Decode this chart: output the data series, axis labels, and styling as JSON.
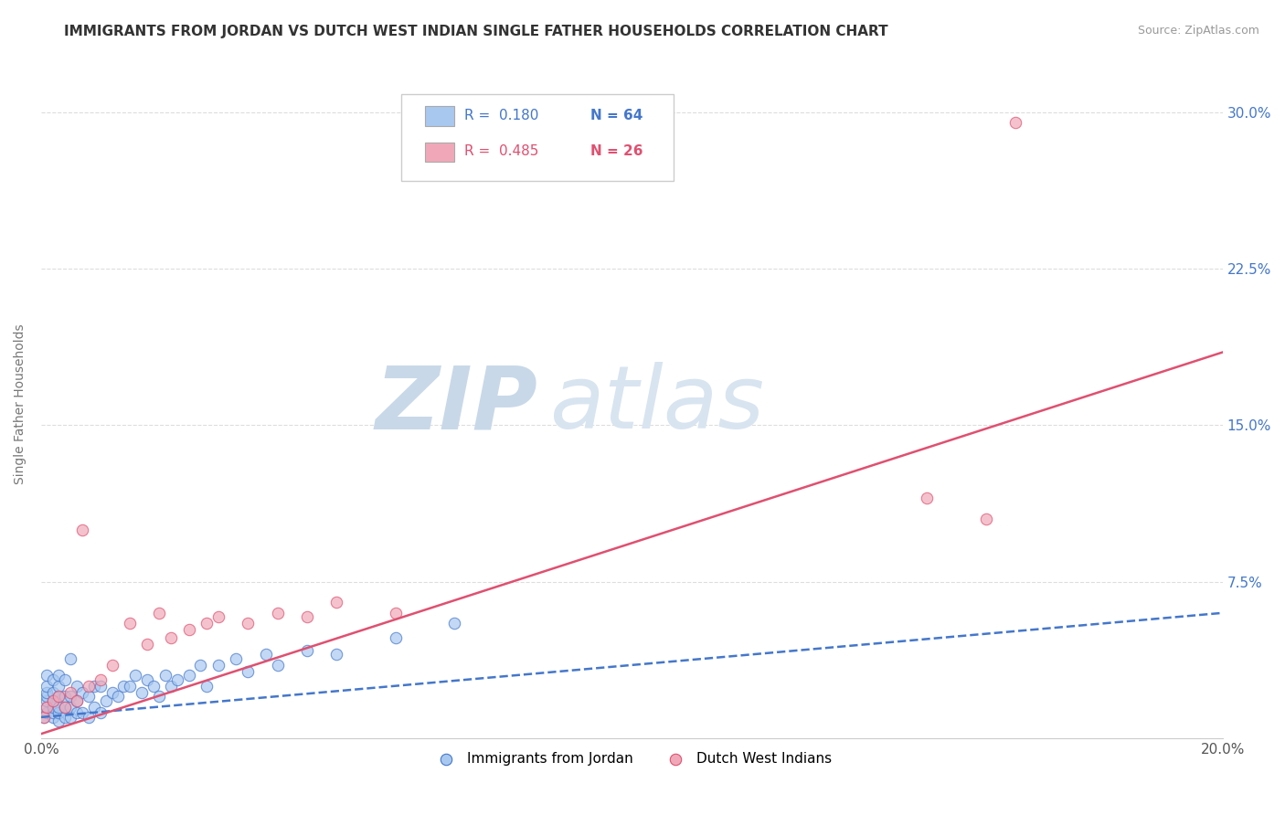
{
  "title": "IMMIGRANTS FROM JORDAN VS DUTCH WEST INDIAN SINGLE FATHER HOUSEHOLDS CORRELATION CHART",
  "source": "Source: ZipAtlas.com",
  "ylabel": "Single Father Households",
  "xlim": [
    0.0,
    0.2
  ],
  "ylim": [
    0.0,
    0.32
  ],
  "yticks": [
    0.075,
    0.15,
    0.225,
    0.3
  ],
  "ytick_labels": [
    "7.5%",
    "15.0%",
    "22.5%",
    "30.0%"
  ],
  "xticks": [
    0.0,
    0.2
  ],
  "xtick_labels": [
    "0.0%",
    "20.0%"
  ],
  "watermark_zip": "ZIP",
  "watermark_atlas": "atlas",
  "color_jordan": "#a8c8f0",
  "color_dutch": "#f0a8b8",
  "line_color_jordan": "#4477cc",
  "line_color_dutch": "#e05070",
  "jordan_points_x": [
    0.0005,
    0.001,
    0.001,
    0.001,
    0.001,
    0.001,
    0.001,
    0.001,
    0.002,
    0.002,
    0.002,
    0.002,
    0.002,
    0.002,
    0.003,
    0.003,
    0.003,
    0.003,
    0.003,
    0.003,
    0.004,
    0.004,
    0.004,
    0.004,
    0.005,
    0.005,
    0.005,
    0.005,
    0.006,
    0.006,
    0.006,
    0.007,
    0.007,
    0.008,
    0.008,
    0.009,
    0.009,
    0.01,
    0.01,
    0.011,
    0.012,
    0.013,
    0.014,
    0.015,
    0.016,
    0.017,
    0.018,
    0.019,
    0.02,
    0.021,
    0.022,
    0.023,
    0.025,
    0.027,
    0.028,
    0.03,
    0.033,
    0.035,
    0.038,
    0.04,
    0.045,
    0.05,
    0.06,
    0.07
  ],
  "jordan_points_y": [
    0.01,
    0.012,
    0.015,
    0.018,
    0.02,
    0.022,
    0.025,
    0.03,
    0.01,
    0.012,
    0.015,
    0.018,
    0.022,
    0.028,
    0.008,
    0.012,
    0.015,
    0.02,
    0.025,
    0.03,
    0.01,
    0.015,
    0.02,
    0.028,
    0.01,
    0.015,
    0.02,
    0.038,
    0.012,
    0.018,
    0.025,
    0.012,
    0.022,
    0.01,
    0.02,
    0.015,
    0.025,
    0.012,
    0.025,
    0.018,
    0.022,
    0.02,
    0.025,
    0.025,
    0.03,
    0.022,
    0.028,
    0.025,
    0.02,
    0.03,
    0.025,
    0.028,
    0.03,
    0.035,
    0.025,
    0.035,
    0.038,
    0.032,
    0.04,
    0.035,
    0.042,
    0.04,
    0.048,
    0.055
  ],
  "dutch_points_x": [
    0.0005,
    0.001,
    0.002,
    0.003,
    0.004,
    0.005,
    0.006,
    0.007,
    0.008,
    0.01,
    0.012,
    0.015,
    0.018,
    0.02,
    0.022,
    0.025,
    0.028,
    0.03,
    0.035,
    0.04,
    0.045,
    0.05,
    0.06,
    0.15,
    0.165,
    0.16
  ],
  "dutch_points_y": [
    0.01,
    0.015,
    0.018,
    0.02,
    0.015,
    0.022,
    0.018,
    0.1,
    0.025,
    0.028,
    0.035,
    0.055,
    0.045,
    0.06,
    0.048,
    0.052,
    0.055,
    0.058,
    0.055,
    0.06,
    0.058,
    0.065,
    0.06,
    0.115,
    0.295,
    0.105
  ],
  "jordan_trendline_x": [
    0.0,
    0.2
  ],
  "jordan_trendline_y": [
    0.01,
    0.06
  ],
  "dutch_trendline_x": [
    0.0,
    0.2
  ],
  "dutch_trendline_y": [
    0.002,
    0.185
  ],
  "background_color": "#ffffff",
  "grid_color": "#dddddd",
  "title_fontsize": 11,
  "axis_fontsize": 10,
  "tick_fontsize": 11
}
